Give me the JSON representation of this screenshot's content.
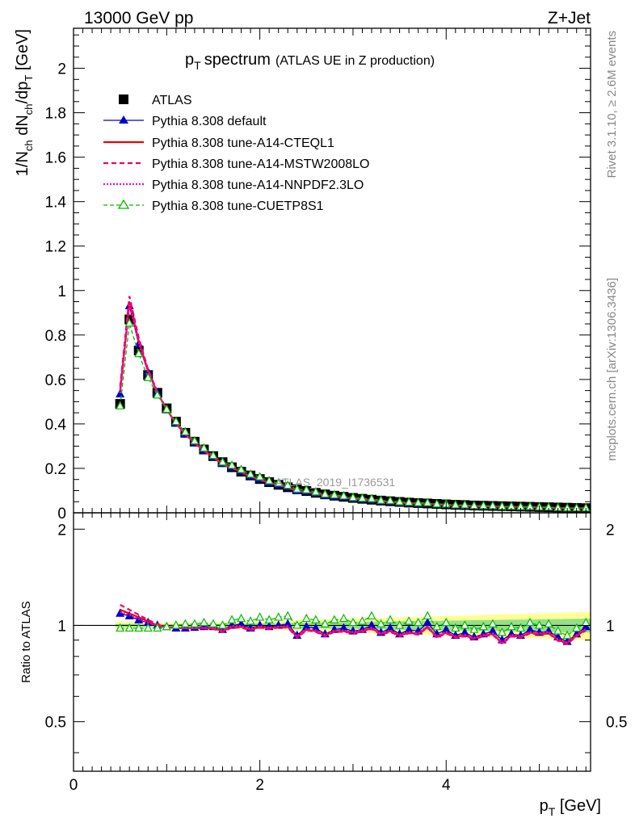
{
  "header": {
    "energy_label": "13000 GeV pp",
    "process_label": "Z+Jet"
  },
  "side_labels": {
    "rivet": "Rivet 3.1.10, ≥ 2.6M events",
    "mcplots": "mcplots.cern.ch [arXiv:1306.3436]"
  },
  "watermark": "ATLAS_2019_I1736531",
  "chart_data": {
    "type": "scatter",
    "title_main": "p",
    "title_sub": "T",
    "title_main2": "spectrum",
    "title_note": "(ATLAS UE in Z production)",
    "ylabel_parts": [
      "1/N",
      "ch",
      " dN",
      "ch",
      "/dp",
      "T",
      " [GeV]"
    ],
    "xlabel_parts": [
      "p",
      "T",
      " [GeV]"
    ],
    "ratio_ylabel": "Ratio to ATLAS",
    "xlim": [
      0,
      5.55
    ],
    "ylim_main": [
      0,
      2.18
    ],
    "ylim_ratio": [
      0.35,
      2.25
    ],
    "ratio_log": true,
    "x_ticks": [
      "0",
      "2",
      "4"
    ],
    "y_ticks_main": [
      "0",
      "0.2",
      "0.4",
      "0.6",
      "0.8",
      "1",
      "1.2",
      "1.4",
      "1.6",
      "1.8",
      "2"
    ],
    "y_ticks_ratio": [
      "0.5",
      "1",
      "2"
    ],
    "x": [
      0.5,
      0.6,
      0.7,
      0.8,
      0.9,
      1.0,
      1.1,
      1.2,
      1.3,
      1.4,
      1.5,
      1.6,
      1.7,
      1.8,
      1.9,
      2.0,
      2.1,
      2.2,
      2.3,
      2.4,
      2.5,
      2.6,
      2.7,
      2.8,
      2.9,
      3.0,
      3.1,
      3.2,
      3.3,
      3.4,
      3.5,
      3.6,
      3.7,
      3.8,
      3.9,
      4.0,
      4.1,
      4.2,
      4.3,
      4.4,
      4.5,
      4.6,
      4.7,
      4.8,
      4.9,
      5.0,
      5.1,
      5.2,
      5.3,
      5.4,
      5.5
    ],
    "data": [
      0.49,
      0.87,
      0.73,
      0.62,
      0.54,
      0.47,
      0.41,
      0.36,
      0.32,
      0.285,
      0.255,
      0.228,
      0.205,
      0.185,
      0.168,
      0.152,
      0.138,
      0.126,
      0.115,
      0.106,
      0.098,
      0.09,
      0.083,
      0.077,
      0.072,
      0.067,
      0.063,
      0.059,
      0.055,
      0.052,
      0.049,
      0.046,
      0.044,
      0.042,
      0.04,
      0.038,
      0.036,
      0.035,
      0.033,
      0.032,
      0.031,
      0.03,
      0.029,
      0.028,
      0.027,
      0.026,
      0.025,
      0.024,
      0.023,
      0.022,
      0.021
    ],
    "band_yellow_half": [
      0.03,
      0.03,
      0.025,
      0.02,
      0.02,
      0.02,
      0.02,
      0.02,
      0.02,
      0.02,
      0.02,
      0.022,
      0.024,
      0.026,
      0.028,
      0.03,
      0.032,
      0.034,
      0.036,
      0.038,
      0.04,
      0.042,
      0.044,
      0.046,
      0.048,
      0.05,
      0.052,
      0.054,
      0.056,
      0.058,
      0.06,
      0.062,
      0.064,
      0.066,
      0.068,
      0.07,
      0.072,
      0.074,
      0.076,
      0.078,
      0.08,
      0.082,
      0.084,
      0.086,
      0.088,
      0.09,
      0.092,
      0.094,
      0.096,
      0.098,
      0.1
    ],
    "band_green_half": [
      0.01,
      0.01,
      0.01,
      0.008,
      0.008,
      0.008,
      0.008,
      0.008,
      0.008,
      0.009,
      0.01,
      0.011,
      0.012,
      0.013,
      0.014,
      0.015,
      0.016,
      0.017,
      0.018,
      0.019,
      0.02,
      0.021,
      0.022,
      0.023,
      0.024,
      0.025,
      0.026,
      0.027,
      0.028,
      0.029,
      0.03,
      0.031,
      0.032,
      0.033,
      0.034,
      0.035,
      0.036,
      0.037,
      0.038,
      0.039,
      0.04,
      0.041,
      0.042,
      0.043,
      0.044,
      0.045,
      0.046,
      0.047,
      0.048,
      0.049,
      0.05
    ],
    "series": [
      {
        "name": "Pythia 8.308 default",
        "color": "#0000cc",
        "dash": "",
        "marker": "triangle-filled",
        "ratio": [
          1.09,
          1.07,
          1.04,
          1.02,
          1.0,
          0.99,
          0.98,
          0.98,
          0.985,
          0.99,
          0.99,
          0.97,
          1.0,
          1.01,
          0.98,
          1.0,
          0.99,
          1.0,
          1.01,
          0.93,
          0.99,
          0.98,
          0.94,
          0.97,
          0.98,
          0.96,
          0.97,
          1.0,
          0.95,
          0.98,
          0.94,
          0.97,
          0.96,
          1.02,
          0.94,
          0.97,
          0.93,
          0.95,
          0.92,
          0.94,
          0.96,
          0.9,
          0.94,
          0.93,
          0.97,
          0.95,
          0.96,
          0.92,
          0.89,
          0.94,
          0.99
        ]
      },
      {
        "name": "Pythia 8.308 tune-A14-CTEQL1",
        "color": "#ee0000",
        "dash": "",
        "marker": "none",
        "ratio": [
          1.12,
          1.09,
          1.06,
          1.03,
          1.0,
          0.99,
          0.98,
          0.98,
          0.98,
          0.98,
          0.98,
          0.96,
          0.99,
          0.99,
          0.97,
          0.99,
          0.98,
          0.99,
          0.99,
          0.92,
          0.97,
          0.96,
          0.93,
          0.96,
          0.96,
          0.95,
          0.96,
          0.98,
          0.94,
          0.96,
          0.93,
          0.95,
          0.94,
          0.99,
          0.92,
          0.95,
          0.92,
          0.93,
          0.91,
          0.93,
          0.94,
          0.88,
          0.93,
          0.92,
          0.95,
          0.94,
          0.95,
          0.9,
          0.88,
          0.93,
          0.97
        ]
      },
      {
        "name": "Pythia 8.308 tune-A14-MSTW2008LO",
        "color": "#ee0066",
        "dash": "6,4",
        "marker": "none",
        "ratio": [
          1.16,
          1.12,
          1.08,
          1.04,
          1.01,
          0.99,
          0.98,
          0.98,
          0.98,
          0.98,
          0.975,
          0.955,
          0.985,
          0.985,
          0.965,
          0.985,
          0.975,
          0.985,
          0.985,
          0.915,
          0.965,
          0.955,
          0.925,
          0.955,
          0.955,
          0.945,
          0.955,
          0.975,
          0.935,
          0.955,
          0.925,
          0.945,
          0.935,
          0.985,
          0.915,
          0.945,
          0.915,
          0.925,
          0.905,
          0.925,
          0.935,
          0.875,
          0.925,
          0.915,
          0.945,
          0.935,
          0.945,
          0.895,
          0.875,
          0.925,
          0.965
        ]
      },
      {
        "name": "Pythia 8.308 tune-A14-NNPDF2.3LO",
        "color": "#ff00cc",
        "dash": "2,2",
        "marker": "none",
        "ratio": [
          1.1,
          1.08,
          1.05,
          1.02,
          1.0,
          0.99,
          0.98,
          0.98,
          0.98,
          0.985,
          0.985,
          0.965,
          0.995,
          0.995,
          0.975,
          0.995,
          0.985,
          0.99,
          0.995,
          0.925,
          0.975,
          0.965,
          0.935,
          0.965,
          0.965,
          0.955,
          0.965,
          0.985,
          0.945,
          0.965,
          0.935,
          0.955,
          0.945,
          0.995,
          0.925,
          0.955,
          0.925,
          0.935,
          0.915,
          0.935,
          0.945,
          0.885,
          0.935,
          0.925,
          0.955,
          0.945,
          0.955,
          0.905,
          0.885,
          0.935,
          0.975
        ]
      },
      {
        "name": "Pythia 8.308 tune-CUETP8S1",
        "color": "#00bb00",
        "dash": "5,3",
        "marker": "triangle-open",
        "ratio": [
          0.98,
          0.98,
          0.98,
          0.98,
          0.98,
          0.99,
          1.0,
          1.01,
          1.01,
          1.02,
          1.01,
          1.0,
          1.04,
          1.05,
          1.03,
          1.06,
          1.04,
          1.06,
          1.07,
          1.0,
          1.05,
          1.04,
          1.01,
          1.04,
          1.05,
          1.02,
          1.03,
          1.07,
          1.01,
          1.04,
          1.0,
          1.03,
          1.02,
          1.07,
          0.99,
          1.02,
          0.98,
          1.0,
          0.97,
          0.99,
          1.01,
          0.95,
          0.99,
          0.98,
          1.02,
          1.0,
          1.01,
          0.96,
          0.93,
          0.98,
          1.02
        ]
      }
    ],
    "legend": {
      "data_label": "ATLAS",
      "placement": "top-left"
    }
  }
}
